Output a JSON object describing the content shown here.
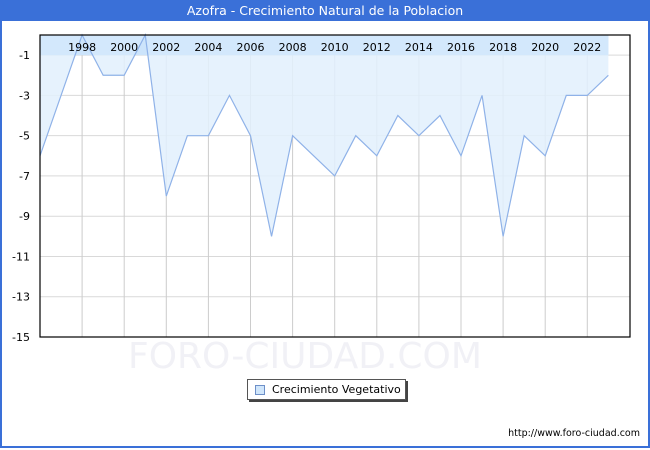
{
  "title": "Azofra - Crecimiento Natural de la Poblacion",
  "watermark": "FORO-CIUDAD.COM",
  "source_url": "http://www.foro-ciudad.com",
  "legend": {
    "label": "Crecimiento Vegetativo",
    "swatch_color": "#d0e6fb"
  },
  "colors": {
    "title_bar": "#3a70d8",
    "line": "#8fb2e8",
    "fill": "#e2f0fd",
    "header_band": "#cce4fb",
    "grid": "#d9d9d9"
  },
  "chart_data": {
    "type": "area",
    "title": "Azofra - Crecimiento Natural de la Poblacion",
    "xlabel": "",
    "ylabel": "",
    "x": [
      1996,
      1997,
      1998,
      1999,
      2000,
      2001,
      2002,
      2003,
      2004,
      2005,
      2006,
      2007,
      2008,
      2009,
      2010,
      2011,
      2012,
      2013,
      2014,
      2015,
      2016,
      2017,
      2018,
      2019,
      2020,
      2021,
      2022,
      2023
    ],
    "series": [
      {
        "name": "Crecimiento Vegetativo",
        "values": [
          -6,
          -3,
          0,
          -2,
          -2,
          0,
          -8,
          -5,
          -5,
          -3,
          -5,
          -10,
          -5,
          -6,
          -7,
          -5,
          -6,
          -4,
          -5,
          -4,
          -6,
          -3,
          -10,
          -5,
          -6,
          -3,
          -3,
          -2
        ]
      }
    ],
    "x_tick_labels": [
      "1998",
      "2000",
      "2002",
      "2004",
      "2006",
      "2008",
      "2010",
      "2012",
      "2014",
      "2016",
      "2018",
      "2020",
      "2022"
    ],
    "y_tick_labels": [
      "-1",
      "-3",
      "-5",
      "-7",
      "-9",
      "-11",
      "-13",
      "-15"
    ],
    "y_ticks": [
      -1,
      -3,
      -5,
      -7,
      -9,
      -11,
      -13,
      -15
    ],
    "ylim": [
      -15,
      0
    ],
    "xlim": [
      1996,
      2024
    ],
    "grid": true,
    "legend_position": "bottom-center",
    "x_axis_position": "top"
  }
}
